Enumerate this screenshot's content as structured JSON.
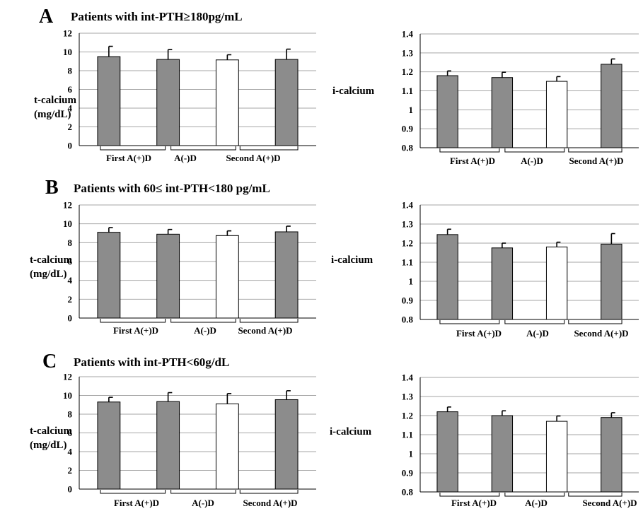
{
  "colors": {
    "first": "#8c8c8c",
    "absent": "#ffffff",
    "second": "#8c8c8c",
    "grid": "#a6a6a6"
  },
  "panels": [
    {
      "letter": "A",
      "title": "Patients with int-PTH≥180pg/mL"
    },
    {
      "letter": "B",
      "title": "Patients with 60≤ int-PTH<180 pg/mL"
    },
    {
      "letter": "C",
      "title": "Patients with int-PTH<60g/dL"
    }
  ],
  "chart_data": [
    {
      "id": "A-t",
      "type": "bar",
      "ylabel": [
        "t-calcium",
        "(mg/dL)"
      ],
      "ylim": [
        0,
        12
      ],
      "yticks": [
        "0",
        "2",
        "4",
        "6",
        "8",
        "10",
        "12"
      ],
      "groups": [
        "First A(+)D",
        "A(-)D",
        "Second A(+)D"
      ],
      "values": [
        9.5,
        9.2,
        9.15,
        9.2
      ],
      "errors": [
        1.1,
        1.05,
        0.55,
        1.1
      ],
      "fills": [
        "first",
        "first",
        "absent",
        "second"
      ],
      "grid": true
    },
    {
      "id": "A-i",
      "type": "bar",
      "ylabel": [
        "i-calcium"
      ],
      "ylim": [
        0.8,
        1.4
      ],
      "yticks": [
        "0.8",
        "0.9",
        "1",
        "1.1",
        "1.2",
        "1.3",
        "1.4"
      ],
      "groups": [
        "First A(+)D",
        "A(-)D",
        "Second A(+)D"
      ],
      "values": [
        1.18,
        1.17,
        1.15,
        1.24
      ],
      "errors": [
        0.025,
        0.028,
        0.025,
        0.028
      ],
      "fills": [
        "first",
        "first",
        "absent",
        "second"
      ],
      "grid": true
    },
    {
      "id": "B-t",
      "type": "bar",
      "ylabel": [
        "t-calcium",
        "(mg/dL)"
      ],
      "ylim": [
        0,
        12
      ],
      "yticks": [
        "0",
        "2",
        "4",
        "6",
        "8",
        "10",
        "12"
      ],
      "groups": [
        "First A(+)D",
        "A(-)D",
        "Second A(+)D"
      ],
      "values": [
        9.1,
        8.9,
        8.75,
        9.15
      ],
      "errors": [
        0.5,
        0.5,
        0.5,
        0.6
      ],
      "fills": [
        "first",
        "first",
        "absent",
        "second"
      ],
      "grid": true
    },
    {
      "id": "B-i",
      "type": "bar",
      "ylabel": [
        "i-calcium"
      ],
      "ylim": [
        0.8,
        1.4
      ],
      "yticks": [
        "0.8",
        "0.9",
        "1",
        "1.1",
        "1.2",
        "1.3",
        "1.4"
      ],
      "groups": [
        "First A(+)D",
        "A(-)D",
        "Second A(+)D"
      ],
      "values": [
        1.245,
        1.175,
        1.18,
        1.195
      ],
      "errors": [
        0.028,
        0.025,
        0.025,
        0.055
      ],
      "fills": [
        "first",
        "first",
        "absent",
        "second"
      ],
      "grid": true
    },
    {
      "id": "C-t",
      "type": "bar",
      "ylabel": [
        "t-calcium",
        "(mg/dL)"
      ],
      "ylim": [
        0,
        12
      ],
      "yticks": [
        "0",
        "2",
        "4",
        "6",
        "8",
        "10",
        "12"
      ],
      "groups": [
        "First A(+)D",
        "A(-)D",
        "Second A(+)D"
      ],
      "values": [
        9.3,
        9.35,
        9.1,
        9.55
      ],
      "errors": [
        0.5,
        0.95,
        1.1,
        0.95
      ],
      "fills": [
        "first",
        "first",
        "absent",
        "second"
      ],
      "grid": true
    },
    {
      "id": "C-i",
      "type": "bar",
      "ylabel": [
        "i-calcium"
      ],
      "ylim": [
        0.8,
        1.4
      ],
      "yticks": [
        "0.8",
        "0.9",
        "1",
        "1.1",
        "1.2",
        "1.3",
        "1.4"
      ],
      "groups": [
        "First A(+)D",
        "A(-)D",
        "Second A(+)D"
      ],
      "values": [
        1.22,
        1.2,
        1.17,
        1.19
      ],
      "errors": [
        0.025,
        0.025,
        0.028,
        0.025
      ],
      "fills": [
        "first",
        "first",
        "absent",
        "second"
      ],
      "grid": true
    }
  ]
}
